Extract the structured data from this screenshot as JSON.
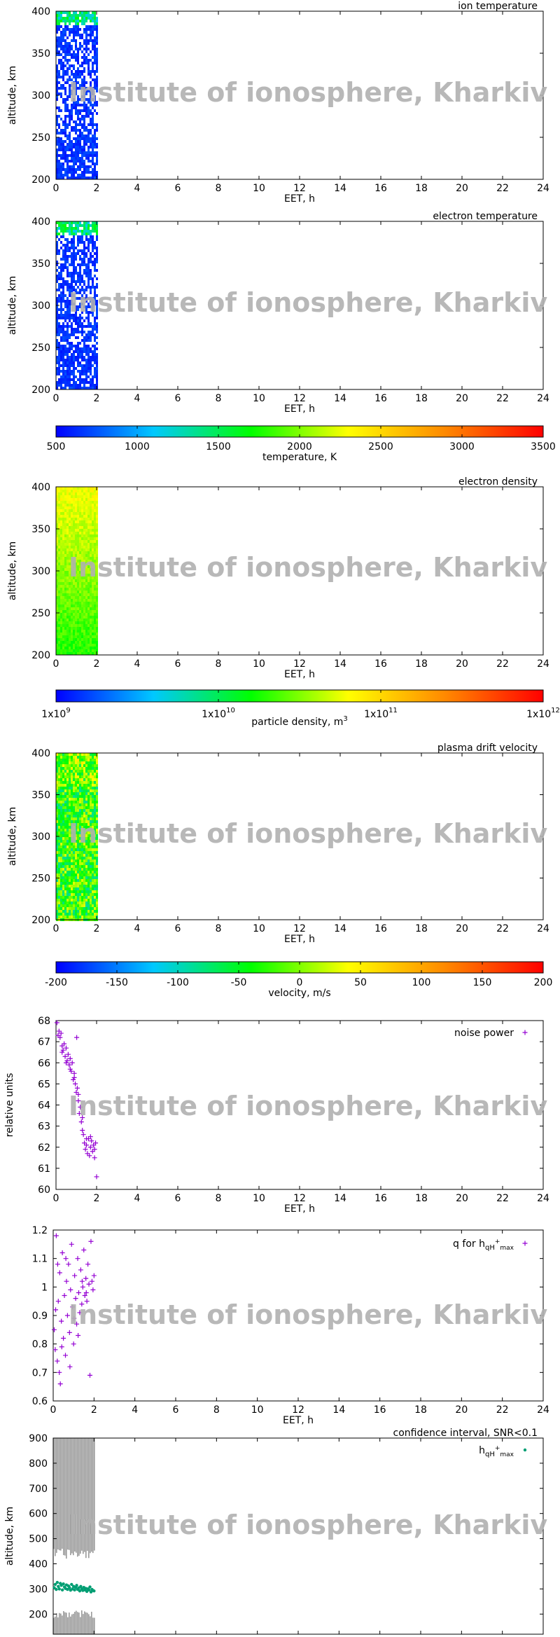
{
  "watermark": "Institute of ionosphere, Kharkiv",
  "colors": {
    "watermark": "#b0b0b0",
    "noise_marker": "#9400d3",
    "q_marker": "#9400d3",
    "hmax_marker": "#009e73",
    "confidence_fill": "#9a9a9a",
    "temperature_scale": [
      "#0000ff",
      "#00c8ff",
      "#00ff00",
      "#ffff00",
      "#ff8800",
      "#ff0000"
    ]
  },
  "chart_data": [
    {
      "id": "ion_temperature",
      "type": "heatmap",
      "title": "ion temperature",
      "xlabel": "EET, h",
      "ylabel": "altitude, km",
      "xlim": [
        0,
        24
      ],
      "ylim": [
        200,
        400
      ],
      "xticks": [
        "0",
        "2",
        "4",
        "6",
        "8",
        "10",
        "12",
        "14",
        "16",
        "18",
        "20",
        "22",
        "24"
      ],
      "yticks": [
        "200",
        "250",
        "300",
        "350",
        "400"
      ],
      "data_x_range": [
        0,
        2
      ],
      "value_range_K": [
        500,
        1200
      ]
    },
    {
      "id": "electron_temperature",
      "type": "heatmap",
      "title": "electron temperature",
      "xlabel": "EET, h",
      "ylabel": "altitude, km",
      "xlim": [
        0,
        24
      ],
      "ylim": [
        200,
        400
      ],
      "xticks": [
        "0",
        "2",
        "4",
        "6",
        "8",
        "10",
        "12",
        "14",
        "16",
        "18",
        "20",
        "22",
        "24"
      ],
      "yticks": [
        "200",
        "250",
        "300",
        "350",
        "400"
      ],
      "data_x_range": [
        0,
        2
      ],
      "value_range_K": [
        500,
        1600
      ]
    },
    {
      "id": "temperature_colorbar",
      "type": "colorbar",
      "label": "temperature, K",
      "ticks": [
        "500",
        "1000",
        "1500",
        "2000",
        "2500",
        "3000",
        "3500"
      ],
      "range": [
        500,
        3500
      ]
    },
    {
      "id": "electron_density",
      "type": "heatmap",
      "title": "electron density",
      "xlabel": "EET, h",
      "ylabel": "altitude, km",
      "xlim": [
        0,
        24
      ],
      "ylim": [
        200,
        400
      ],
      "xticks": [
        "0",
        "2",
        "4",
        "6",
        "8",
        "10",
        "12",
        "14",
        "16",
        "18",
        "20",
        "22",
        "24"
      ],
      "yticks": [
        "200",
        "250",
        "300",
        "350",
        "400"
      ],
      "data_x_range": [
        0,
        2
      ],
      "value_range_log10_m3": [
        10.0,
        10.7
      ]
    },
    {
      "id": "density_colorbar",
      "type": "colorbar",
      "label": "particle density, m",
      "label_sup": "3",
      "ticks": [
        {
          "base": "1x10",
          "exp": "9"
        },
        {
          "base": "1x10",
          "exp": "10"
        },
        {
          "base": "1x10",
          "exp": "11"
        },
        {
          "base": "1x10",
          "exp": "12"
        }
      ],
      "log_range": [
        9,
        12
      ]
    },
    {
      "id": "plasma_drift_velocity",
      "type": "heatmap",
      "title": "plasma drift velocity",
      "xlabel": "EET, h",
      "ylabel": "altitude, km",
      "xlim": [
        0,
        24
      ],
      "ylim": [
        200,
        400
      ],
      "xticks": [
        "0",
        "2",
        "4",
        "6",
        "8",
        "10",
        "12",
        "14",
        "16",
        "18",
        "20",
        "22",
        "24"
      ],
      "yticks": [
        "200",
        "250",
        "300",
        "350",
        "400"
      ],
      "data_x_range": [
        0,
        2
      ],
      "value_range_ms": [
        -60,
        40
      ]
    },
    {
      "id": "velocity_colorbar",
      "type": "colorbar",
      "label": "velocity, m/s",
      "ticks": [
        "-200",
        "-150",
        "-100",
        "-50",
        "0",
        "50",
        "100",
        "150",
        "200"
      ],
      "range": [
        -200,
        200
      ]
    },
    {
      "id": "noise_power",
      "type": "scatter",
      "legend": "noise power",
      "legend_position": "top-right",
      "xlabel": "EET, h",
      "ylabel": "relative units",
      "xlim": [
        0,
        24
      ],
      "ylim": [
        60,
        68
      ],
      "xticks": [
        "0",
        "2",
        "4",
        "6",
        "8",
        "10",
        "12",
        "14",
        "16",
        "18",
        "20",
        "22",
        "24"
      ],
      "yticks": [
        "60",
        "61",
        "62",
        "63",
        "64",
        "65",
        "66",
        "67",
        "68"
      ],
      "points": [
        [
          0.05,
          67.9
        ],
        [
          0.1,
          67.3
        ],
        [
          0.15,
          67.5
        ],
        [
          0.2,
          67.2
        ],
        [
          0.25,
          67.4
        ],
        [
          0.3,
          66.8
        ],
        [
          0.35,
          66.6
        ],
        [
          0.4,
          66.9
        ],
        [
          0.45,
          66.3
        ],
        [
          0.5,
          66.7
        ],
        [
          0.55,
          66.1
        ],
        [
          0.6,
          66.4
        ],
        [
          0.65,
          65.9
        ],
        [
          0.7,
          66.2
        ],
        [
          0.75,
          65.6
        ],
        [
          0.8,
          66.0
        ],
        [
          0.85,
          65.2
        ],
        [
          0.9,
          65.5
        ],
        [
          0.95,
          65.0
        ],
        [
          1.0,
          64.6
        ],
        [
          1.02,
          67.2
        ],
        [
          1.05,
          64.8
        ],
        [
          1.1,
          64.2
        ],
        [
          1.15,
          63.6
        ],
        [
          1.2,
          63.9
        ],
        [
          1.25,
          63.2
        ],
        [
          1.3,
          62.8
        ],
        [
          1.35,
          62.6
        ],
        [
          1.4,
          62.2
        ],
        [
          1.45,
          61.9
        ],
        [
          1.5,
          62.1
        ],
        [
          1.55,
          61.7
        ],
        [
          1.6,
          62.4
        ],
        [
          1.65,
          61.6
        ],
        [
          1.7,
          62.0
        ],
        [
          1.75,
          62.3
        ],
        [
          1.8,
          61.8
        ],
        [
          1.85,
          62.1
        ],
        [
          1.9,
          61.5
        ],
        [
          1.95,
          62.2
        ],
        [
          2.0,
          60.6
        ],
        [
          0.3,
          66.5
        ],
        [
          0.5,
          66.0
        ],
        [
          0.7,
          65.7
        ],
        [
          0.9,
          65.3
        ],
        [
          1.1,
          64.5
        ],
        [
          1.3,
          63.4
        ],
        [
          1.5,
          62.4
        ],
        [
          1.7,
          62.5
        ],
        [
          1.9,
          61.9
        ]
      ]
    },
    {
      "id": "q_for_hmax",
      "type": "scatter",
      "legend": "q for h",
      "legend_sub": "qH",
      "legend_sup": "+",
      "legend_sub2": "max",
      "legend_position": "top-right",
      "xlabel": "EET, h",
      "ylabel": "",
      "xlim": [
        0,
        24
      ],
      "ylim": [
        0.6,
        1.2
      ],
      "xticks": [
        "0",
        "2",
        "4",
        "6",
        "8",
        "10",
        "12",
        "14",
        "16",
        "18",
        "20",
        "22",
        "24"
      ],
      "yticks": [
        "0.6",
        "0.7",
        "0.8",
        "0.9",
        "1",
        "1.1",
        "1.2"
      ],
      "points": [
        [
          0.05,
          0.85
        ],
        [
          0.1,
          0.78
        ],
        [
          0.12,
          0.92
        ],
        [
          0.15,
          1.18
        ],
        [
          0.2,
          0.74
        ],
        [
          0.25,
          0.95
        ],
        [
          0.3,
          0.7
        ],
        [
          0.32,
          1.05
        ],
        [
          0.35,
          0.66
        ],
        [
          0.4,
          0.88
        ],
        [
          0.45,
          1.12
        ],
        [
          0.5,
          0.82
        ],
        [
          0.55,
          0.97
        ],
        [
          0.6,
          0.76
        ],
        [
          0.65,
          1.02
        ],
        [
          0.7,
          0.9
        ],
        [
          0.75,
          1.08
        ],
        [
          0.8,
          0.84
        ],
        [
          0.85,
          0.99
        ],
        [
          0.9,
          1.15
        ],
        [
          0.95,
          0.93
        ],
        [
          1.0,
          0.8
        ],
        [
          1.05,
          1.04
        ],
        [
          1.1,
          0.96
        ],
        [
          1.15,
          0.87
        ],
        [
          1.2,
          1.1
        ],
        [
          1.25,
          0.98
        ],
        [
          1.3,
          0.91
        ],
        [
          1.35,
          1.06
        ],
        [
          1.4,
          0.94
        ],
        [
          1.45,
          1.0
        ],
        [
          1.5,
          1.13
        ],
        [
          1.55,
          0.97
        ],
        [
          1.6,
          1.03
        ],
        [
          1.65,
          0.95
        ],
        [
          1.7,
          1.08
        ],
        [
          1.75,
          1.01
        ],
        [
          1.8,
          0.69
        ],
        [
          1.85,
          1.16
        ],
        [
          1.9,
          1.02
        ],
        [
          1.95,
          0.99
        ],
        [
          2.0,
          1.04
        ],
        [
          0.22,
          1.08
        ],
        [
          0.42,
          0.79
        ],
        [
          0.62,
          1.1
        ],
        [
          0.82,
          0.72
        ],
        [
          1.02,
          0.89
        ],
        [
          1.22,
          0.83
        ],
        [
          1.42,
          1.02
        ],
        [
          1.62,
          0.98
        ]
      ]
    },
    {
      "id": "confidence_interval",
      "type": "scatter",
      "title": "confidence interval, SNR<0.1",
      "legend": "h",
      "legend_sub": "qH",
      "legend_sup": "+",
      "legend_sub2": "max",
      "legend_position": "top-right",
      "xlabel": "EET, h",
      "ylabel": "altitude, km",
      "xlim": [
        0,
        24
      ],
      "ylim": [
        120,
        900
      ],
      "xticks": [
        "0",
        "2",
        "4",
        "6",
        "8",
        "10",
        "12",
        "14",
        "16",
        "18",
        "20",
        "22",
        "24"
      ],
      "yticks": [
        "200",
        "300",
        "400",
        "500",
        "600",
        "700",
        "800",
        "900"
      ],
      "confidence_upper": {
        "x_range": [
          0,
          2
        ],
        "from_km": 440,
        "to_km": 900
      },
      "confidence_lower": {
        "x_range": [
          0,
          2
        ],
        "from_km": 120,
        "to_km": 200
      },
      "points": [
        [
          0.05,
          305
        ],
        [
          0.1,
          318
        ],
        [
          0.15,
          298
        ],
        [
          0.2,
          326
        ],
        [
          0.25,
          310
        ],
        [
          0.3,
          300
        ],
        [
          0.35,
          322
        ],
        [
          0.4,
          314
        ],
        [
          0.45,
          296
        ],
        [
          0.5,
          320
        ],
        [
          0.55,
          308
        ],
        [
          0.6,
          302
        ],
        [
          0.65,
          316
        ],
        [
          0.7,
          298
        ],
        [
          0.75,
          312
        ],
        [
          0.8,
          305
        ],
        [
          0.85,
          295
        ],
        [
          0.9,
          318
        ],
        [
          0.95,
          300
        ],
        [
          1.0,
          310
        ],
        [
          1.05,
          296
        ],
        [
          1.1,
          306
        ],
        [
          1.15,
          314
        ],
        [
          1.2,
          298
        ],
        [
          1.25,
          304
        ],
        [
          1.3,
          292
        ],
        [
          1.35,
          310
        ],
        [
          1.4,
          300
        ],
        [
          1.45,
          294
        ],
        [
          1.5,
          306
        ],
        [
          1.55,
          296
        ],
        [
          1.6,
          302
        ],
        [
          1.65,
          290
        ],
        [
          1.7,
          300
        ],
        [
          1.75,
          296
        ],
        [
          1.8,
          308
        ],
        [
          1.85,
          288
        ],
        [
          1.9,
          298
        ],
        [
          1.95,
          294
        ],
        [
          2.0,
          292
        ]
      ]
    }
  ]
}
